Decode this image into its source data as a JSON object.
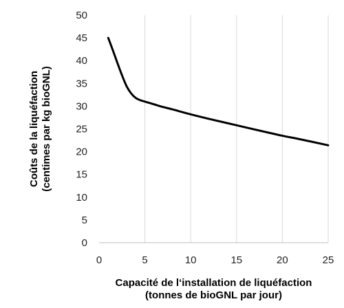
{
  "chart_data": {
    "type": "line",
    "title": "",
    "xlabel": [
      "Capacité de l‘installation de liquéfaction",
      "(tonnes de bioGNL par jour)"
    ],
    "ylabel": [
      "Coûts de la liquéfaction",
      "(centimes par kg bioGNL)"
    ],
    "xlim": [
      0,
      25
    ],
    "ylim": [
      0,
      50
    ],
    "x_ticks": [
      0,
      5,
      10,
      15,
      20,
      25
    ],
    "y_ticks": [
      0,
      5,
      10,
      15,
      20,
      25,
      30,
      35,
      40,
      45,
      50
    ],
    "grid": "vertical",
    "legend": "none",
    "colors": {
      "line": "#000000",
      "grid": "#d9d9d9",
      "axis": "#bfbfbf"
    },
    "series": [
      {
        "x": [
          1,
          1.5,
          2,
          2.5,
          3,
          3.5,
          4,
          4.5,
          5,
          6,
          7,
          8,
          10,
          12,
          15,
          18,
          20,
          22,
          25
        ],
        "y": [
          45,
          42.3,
          39.5,
          36.8,
          34.4,
          32.8,
          31.8,
          31.3,
          31.0,
          30.4,
          29.8,
          29.3,
          28.2,
          27.2,
          25.8,
          24.4,
          23.5,
          22.7,
          21.4
        ]
      }
    ]
  }
}
